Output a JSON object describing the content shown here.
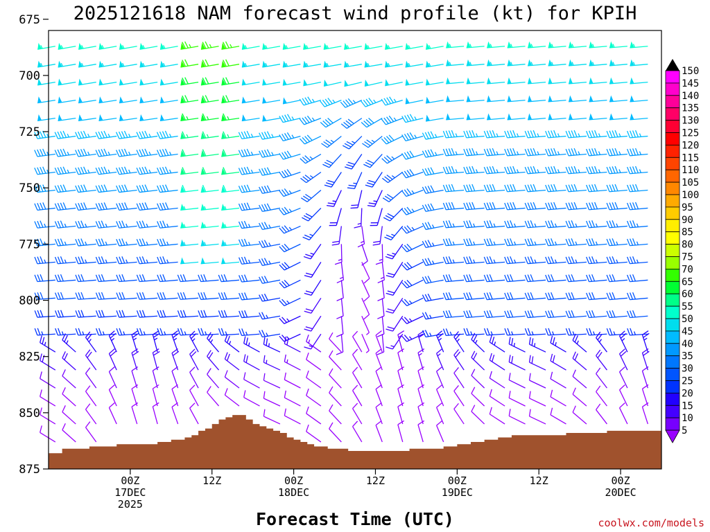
{
  "chart_data": {
    "type": "wind-barb time-height",
    "title": "2025121618 NAM forecast wind profile (kt) for KPIH",
    "xlabel": "Forecast Time (UTC)",
    "ylabel": "",
    "y_axis": {
      "unit": "hPa",
      "range": [
        680,
        875
      ],
      "reversed": true,
      "ticks": [
        "675",
        "700",
        "725",
        "750",
        "775",
        "800",
        "825",
        "850",
        "875"
      ]
    },
    "x_axis": {
      "range_hours_since_init": [
        -6,
        84
      ],
      "ticks": [
        {
          "hour": 6,
          "line1": "00Z",
          "line2": "17DEC",
          "line3": "2025"
        },
        {
          "hour": 18,
          "line1": "12Z",
          "line2": "",
          "line3": ""
        },
        {
          "hour": 30,
          "line1": "00Z",
          "line2": "18DEC",
          "line3": ""
        },
        {
          "hour": 42,
          "line1": "12Z",
          "line2": "",
          "line3": ""
        },
        {
          "hour": 54,
          "line1": "00Z",
          "line2": "19DEC",
          "line3": ""
        },
        {
          "hour": 66,
          "line1": "12Z",
          "line2": "",
          "line3": ""
        },
        {
          "hour": 78,
          "line1": "00Z",
          "line2": "20DEC",
          "line3": ""
        }
      ]
    },
    "colorbar": {
      "unit": "kt",
      "levels": [
        "150",
        "145",
        "140",
        "135",
        "130",
        "125",
        "120",
        "115",
        "110",
        "105",
        "100",
        "95",
        "90",
        "85",
        "80",
        "75",
        "70",
        "65",
        "60",
        "55",
        "50",
        "45",
        "40",
        "35",
        "30",
        "25",
        "20",
        "15",
        "10",
        "5"
      ],
      "colors": [
        "#ff00ff",
        "#ff00cc",
        "#ff0099",
        "#ff0066",
        "#ff0033",
        "#ff0000",
        "#ff2200",
        "#ff4400",
        "#ff6600",
        "#ff8800",
        "#ffaa00",
        "#ffcc00",
        "#ffee00",
        "#ffff00",
        "#ccff00",
        "#99ff00",
        "#33ff00",
        "#00ff33",
        "#00ff88",
        "#00ffcc",
        "#00ddee",
        "#00bbff",
        "#0099ff",
        "#0077ff",
        "#0055ff",
        "#0033ff",
        "#2200ff",
        "#4400ff",
        "#7700ff",
        "#9900ff"
      ]
    },
    "terrain_color": "#a0522d",
    "terrain_surface_hpa": [
      [
        -6,
        868
      ],
      [
        -4,
        866
      ],
      [
        -2,
        866
      ],
      [
        0,
        865
      ],
      [
        2,
        865
      ],
      [
        4,
        864
      ],
      [
        6,
        864
      ],
      [
        8,
        864
      ],
      [
        10,
        863
      ],
      [
        12,
        862
      ],
      [
        14,
        861
      ],
      [
        15,
        860
      ],
      [
        16,
        858
      ],
      [
        17,
        857
      ],
      [
        18,
        855
      ],
      [
        19,
        853
      ],
      [
        20,
        852
      ],
      [
        21,
        851
      ],
      [
        22,
        851
      ],
      [
        23,
        853
      ],
      [
        24,
        855
      ],
      [
        25,
        856
      ],
      [
        26,
        857
      ],
      [
        27,
        858
      ],
      [
        28,
        859
      ],
      [
        29,
        861
      ],
      [
        30,
        862
      ],
      [
        31,
        863
      ],
      [
        32,
        864
      ],
      [
        33,
        865
      ],
      [
        34,
        865
      ],
      [
        35,
        866
      ],
      [
        36,
        866
      ],
      [
        38,
        867
      ],
      [
        40,
        867
      ],
      [
        42,
        867
      ],
      [
        44,
        867
      ],
      [
        46,
        867
      ],
      [
        47,
        866
      ],
      [
        48,
        866
      ],
      [
        50,
        866
      ],
      [
        52,
        865
      ],
      [
        54,
        864
      ],
      [
        56,
        863
      ],
      [
        58,
        862
      ],
      [
        60,
        861
      ],
      [
        62,
        860
      ],
      [
        64,
        860
      ],
      [
        66,
        860
      ],
      [
        68,
        860
      ],
      [
        70,
        859
      ],
      [
        72,
        859
      ],
      [
        74,
        859
      ],
      [
        76,
        858
      ],
      [
        78,
        858
      ],
      [
        80,
        858
      ],
      [
        82,
        858
      ],
      [
        84,
        858
      ]
    ],
    "barbs": {
      "time_step_hours": 1,
      "levels_hpa": [
        687,
        695,
        703,
        711,
        719,
        727,
        735,
        743,
        751,
        759,
        767,
        775,
        783,
        791,
        799,
        807,
        815,
        823,
        831,
        839,
        847,
        855,
        863,
        871
      ],
      "description": "NAM forecast wind barbs at each forecast hour and pressure level; speeds in knots (color-coded), direction flow mostly westerly aloft with a light/variable wind trough between 00Z 18DEC and 12Z 18DEC"
    },
    "credit": "coolwx.com/models"
  }
}
